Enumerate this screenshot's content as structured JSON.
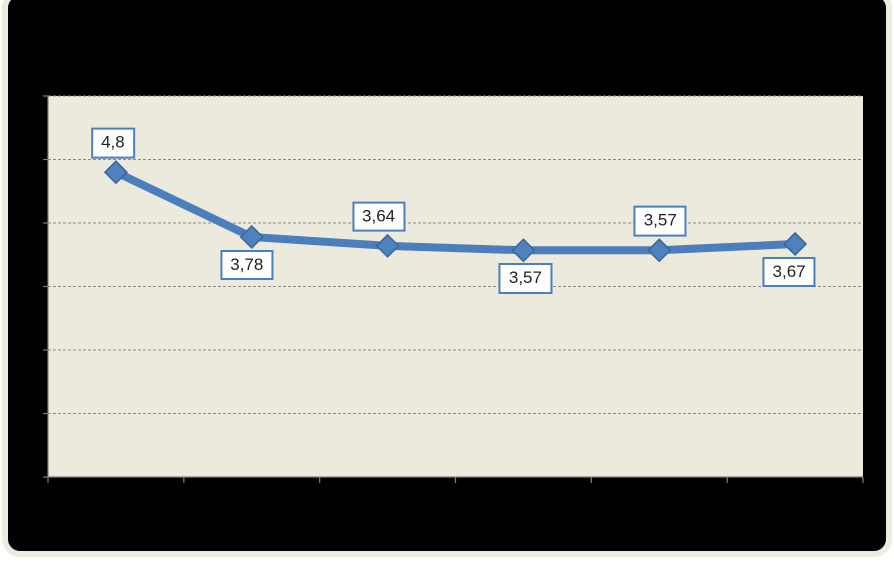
{
  "chart_data": {
    "type": "line",
    "title": "",
    "xlabel": "",
    "ylabel": "",
    "series": [
      {
        "name": "series-1",
        "values": [
          4.8,
          3.78,
          3.64,
          3.57,
          3.57,
          3.67
        ],
        "data_labels": [
          "4,8",
          "3,78",
          "3,64",
          "3,57",
          "3,57",
          "3,67"
        ],
        "label_placement": [
          {
            "side": "above",
            "dx": -3
          },
          {
            "side": "below",
            "dx": -5
          },
          {
            "side": "above",
            "dx": -9
          },
          {
            "side": "below",
            "dx": 2
          },
          {
            "side": "above",
            "dx": 1
          },
          {
            "side": "below",
            "dx": -6
          }
        ],
        "marker": "diamond"
      }
    ],
    "num_categories": 6,
    "category_tick_labels_visible": false,
    "y_tick_labels_visible": false,
    "ylim": [
      0,
      6
    ],
    "y_gridline_step": 1,
    "grid": true,
    "gridline_style": "dashed",
    "legend": "none",
    "decimal_separator": ","
  },
  "colors": {
    "page_background": "#ffffff",
    "chart_background": "#000000",
    "frame_border": "#edebdf",
    "plot_background": "#ece9dd",
    "gridline": "#8a8a8a",
    "axis": "#808080",
    "series_line": "#4a7ebc",
    "marker_fill": "#4f81bd",
    "marker_border": "#38679e",
    "label_box_background": "#ffffff",
    "label_box_border": "#4a7ebc",
    "label_text": "#222222"
  }
}
